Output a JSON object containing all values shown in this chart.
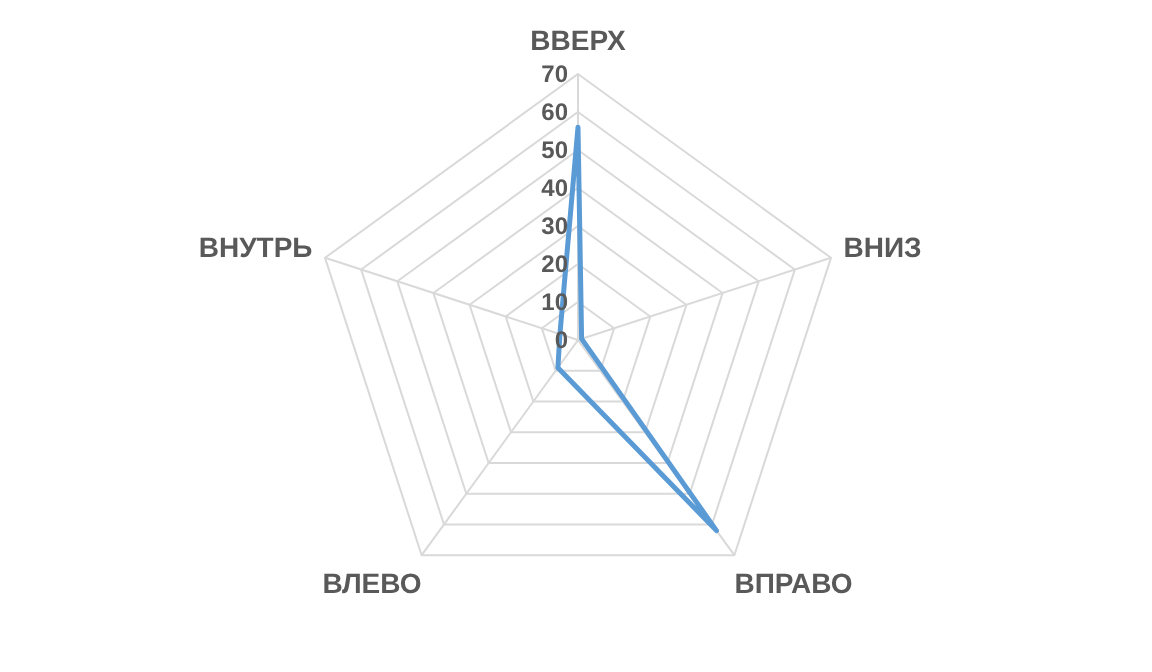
{
  "chart_data": {
    "type": "radar",
    "categories": [
      "ВВЕРХ",
      "ВНИЗ",
      "ВПРАВО",
      "ВЛЕВО",
      "ВНУТРЬ"
    ],
    "series": [
      {
        "color": "#5b9bd5",
        "values": [
          56,
          1,
          62,
          9,
          5
        ]
      }
    ],
    "ylim": [
      0,
      70
    ],
    "yticks": [
      0,
      10,
      20,
      30,
      40,
      50,
      60,
      70
    ],
    "grid": true,
    "marker": "none"
  }
}
